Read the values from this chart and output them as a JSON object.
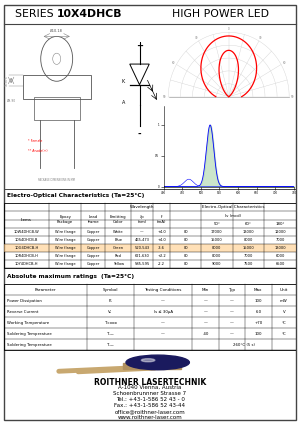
{
  "title_series": "SERIES ",
  "title_bold": "10X4DHCB",
  "title_rest": "HIGH POWER LED",
  "bg_color": "#ffffff",
  "table1_title": "Electro-Optical Characteristics (Ta=25°C)",
  "table1_rows": [
    [
      "10W4DHCB-W",
      "Wire flange",
      "Copper",
      "White",
      "—",
      "+4.0",
      "80",
      "17000",
      "13000",
      "12000"
    ],
    [
      "10S4DHCB-B",
      "Wire flange",
      "Copper",
      "Blue",
      "465-473",
      "+4.0",
      "80",
      "15000",
      "8000",
      "7000"
    ],
    [
      "10G4DHCB-H",
      "Wire flange",
      "Copper",
      "Green",
      "520-543",
      "-3.6",
      "80",
      "8000",
      "15000",
      "13000"
    ],
    [
      "10R4DHCB-H",
      "Wire flange",
      "Copper",
      "Red",
      "621-630",
      "+2.2",
      "80",
      "8000",
      "7000",
      "6000"
    ],
    [
      "10Y4DHCB-H",
      "Wire flange",
      "Copper",
      "Yellow",
      "585-595",
      "-2.2",
      "80",
      "9000",
      "7500",
      "6500"
    ]
  ],
  "table2_title": "Absolute maximum ratings  (Ta=25°C)",
  "highlight_row": 2,
  "highlight_color": "#FFCC88",
  "company_name": "ROITHNER LASERTECHNIK",
  "company_addr1": "A-1040 Vienna, Austria",
  "company_addr2": "Schoenbrunnner Strasse 7",
  "company_tel": "Tel.: +43-1-586 52 43 - 0",
  "company_fax": "Fax.: +43-1-586 52 43-44",
  "company_email": "office@roithner-laser.com",
  "company_web": "www.roithner-laser.com"
}
